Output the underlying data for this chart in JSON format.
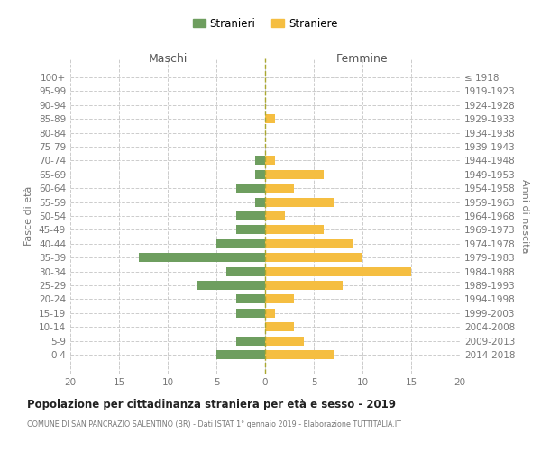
{
  "age_groups": [
    "100+",
    "95-99",
    "90-94",
    "85-89",
    "80-84",
    "75-79",
    "70-74",
    "65-69",
    "60-64",
    "55-59",
    "50-54",
    "45-49",
    "40-44",
    "35-39",
    "30-34",
    "25-29",
    "20-24",
    "15-19",
    "10-14",
    "5-9",
    "0-4"
  ],
  "birth_years": [
    "≤ 1918",
    "1919-1923",
    "1924-1928",
    "1929-1933",
    "1934-1938",
    "1939-1943",
    "1944-1948",
    "1949-1953",
    "1954-1958",
    "1959-1963",
    "1964-1968",
    "1969-1973",
    "1974-1978",
    "1979-1983",
    "1984-1988",
    "1989-1993",
    "1994-1998",
    "1999-2003",
    "2004-2008",
    "2009-2013",
    "2014-2018"
  ],
  "males": [
    0,
    0,
    0,
    0,
    0,
    0,
    1,
    1,
    3,
    1,
    3,
    3,
    5,
    13,
    4,
    7,
    3,
    3,
    0,
    3,
    5
  ],
  "females": [
    0,
    0,
    0,
    1,
    0,
    0,
    1,
    6,
    3,
    7,
    2,
    6,
    9,
    10,
    15,
    8,
    3,
    1,
    3,
    4,
    7
  ],
  "male_color": "#6e9e5f",
  "female_color": "#f5be41",
  "title": "Popolazione per cittadinanza straniera per età e sesso - 2019",
  "subtitle": "COMUNE DI SAN PANCRAZIO SALENTINO (BR) - Dati ISTAT 1° gennaio 2019 - Elaborazione TUTTITALIA.IT",
  "xlabel_left": "Maschi",
  "xlabel_right": "Femmine",
  "ylabel_left": "Fasce di età",
  "ylabel_right": "Anni di nascita",
  "legend_male": "Stranieri",
  "legend_female": "Straniere",
  "xlim": 20,
  "background_color": "#ffffff",
  "grid_color": "#cccccc"
}
